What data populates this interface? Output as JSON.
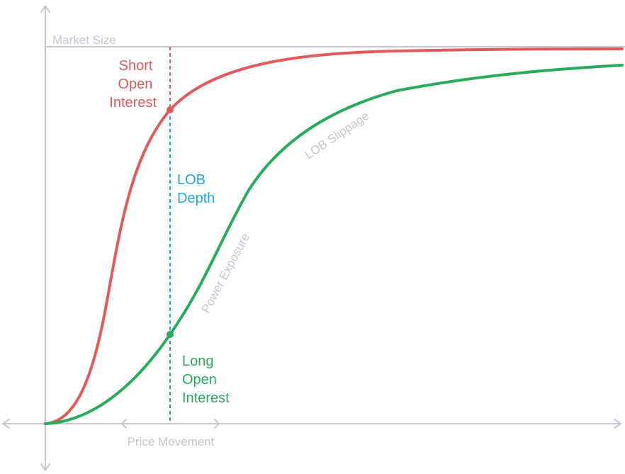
{
  "labels": {
    "market_size": "Market Size",
    "short_open_interest": [
      "Short",
      "Open",
      "Interest"
    ],
    "lob_depth": [
      "LOB",
      "Depth"
    ],
    "long_open_interest": [
      "Long",
      "Open",
      "Interest"
    ],
    "price_movement": "Price Movement",
    "lob_slippage": "LOB Slippage",
    "power_exposure": "Power Exposure"
  },
  "colors": {
    "short": "#e35a5a",
    "long": "#29ab5c",
    "depth": "#1aa8e8",
    "axis": "#c7c4dc",
    "muted_text": "#c5c3d8"
  }
}
